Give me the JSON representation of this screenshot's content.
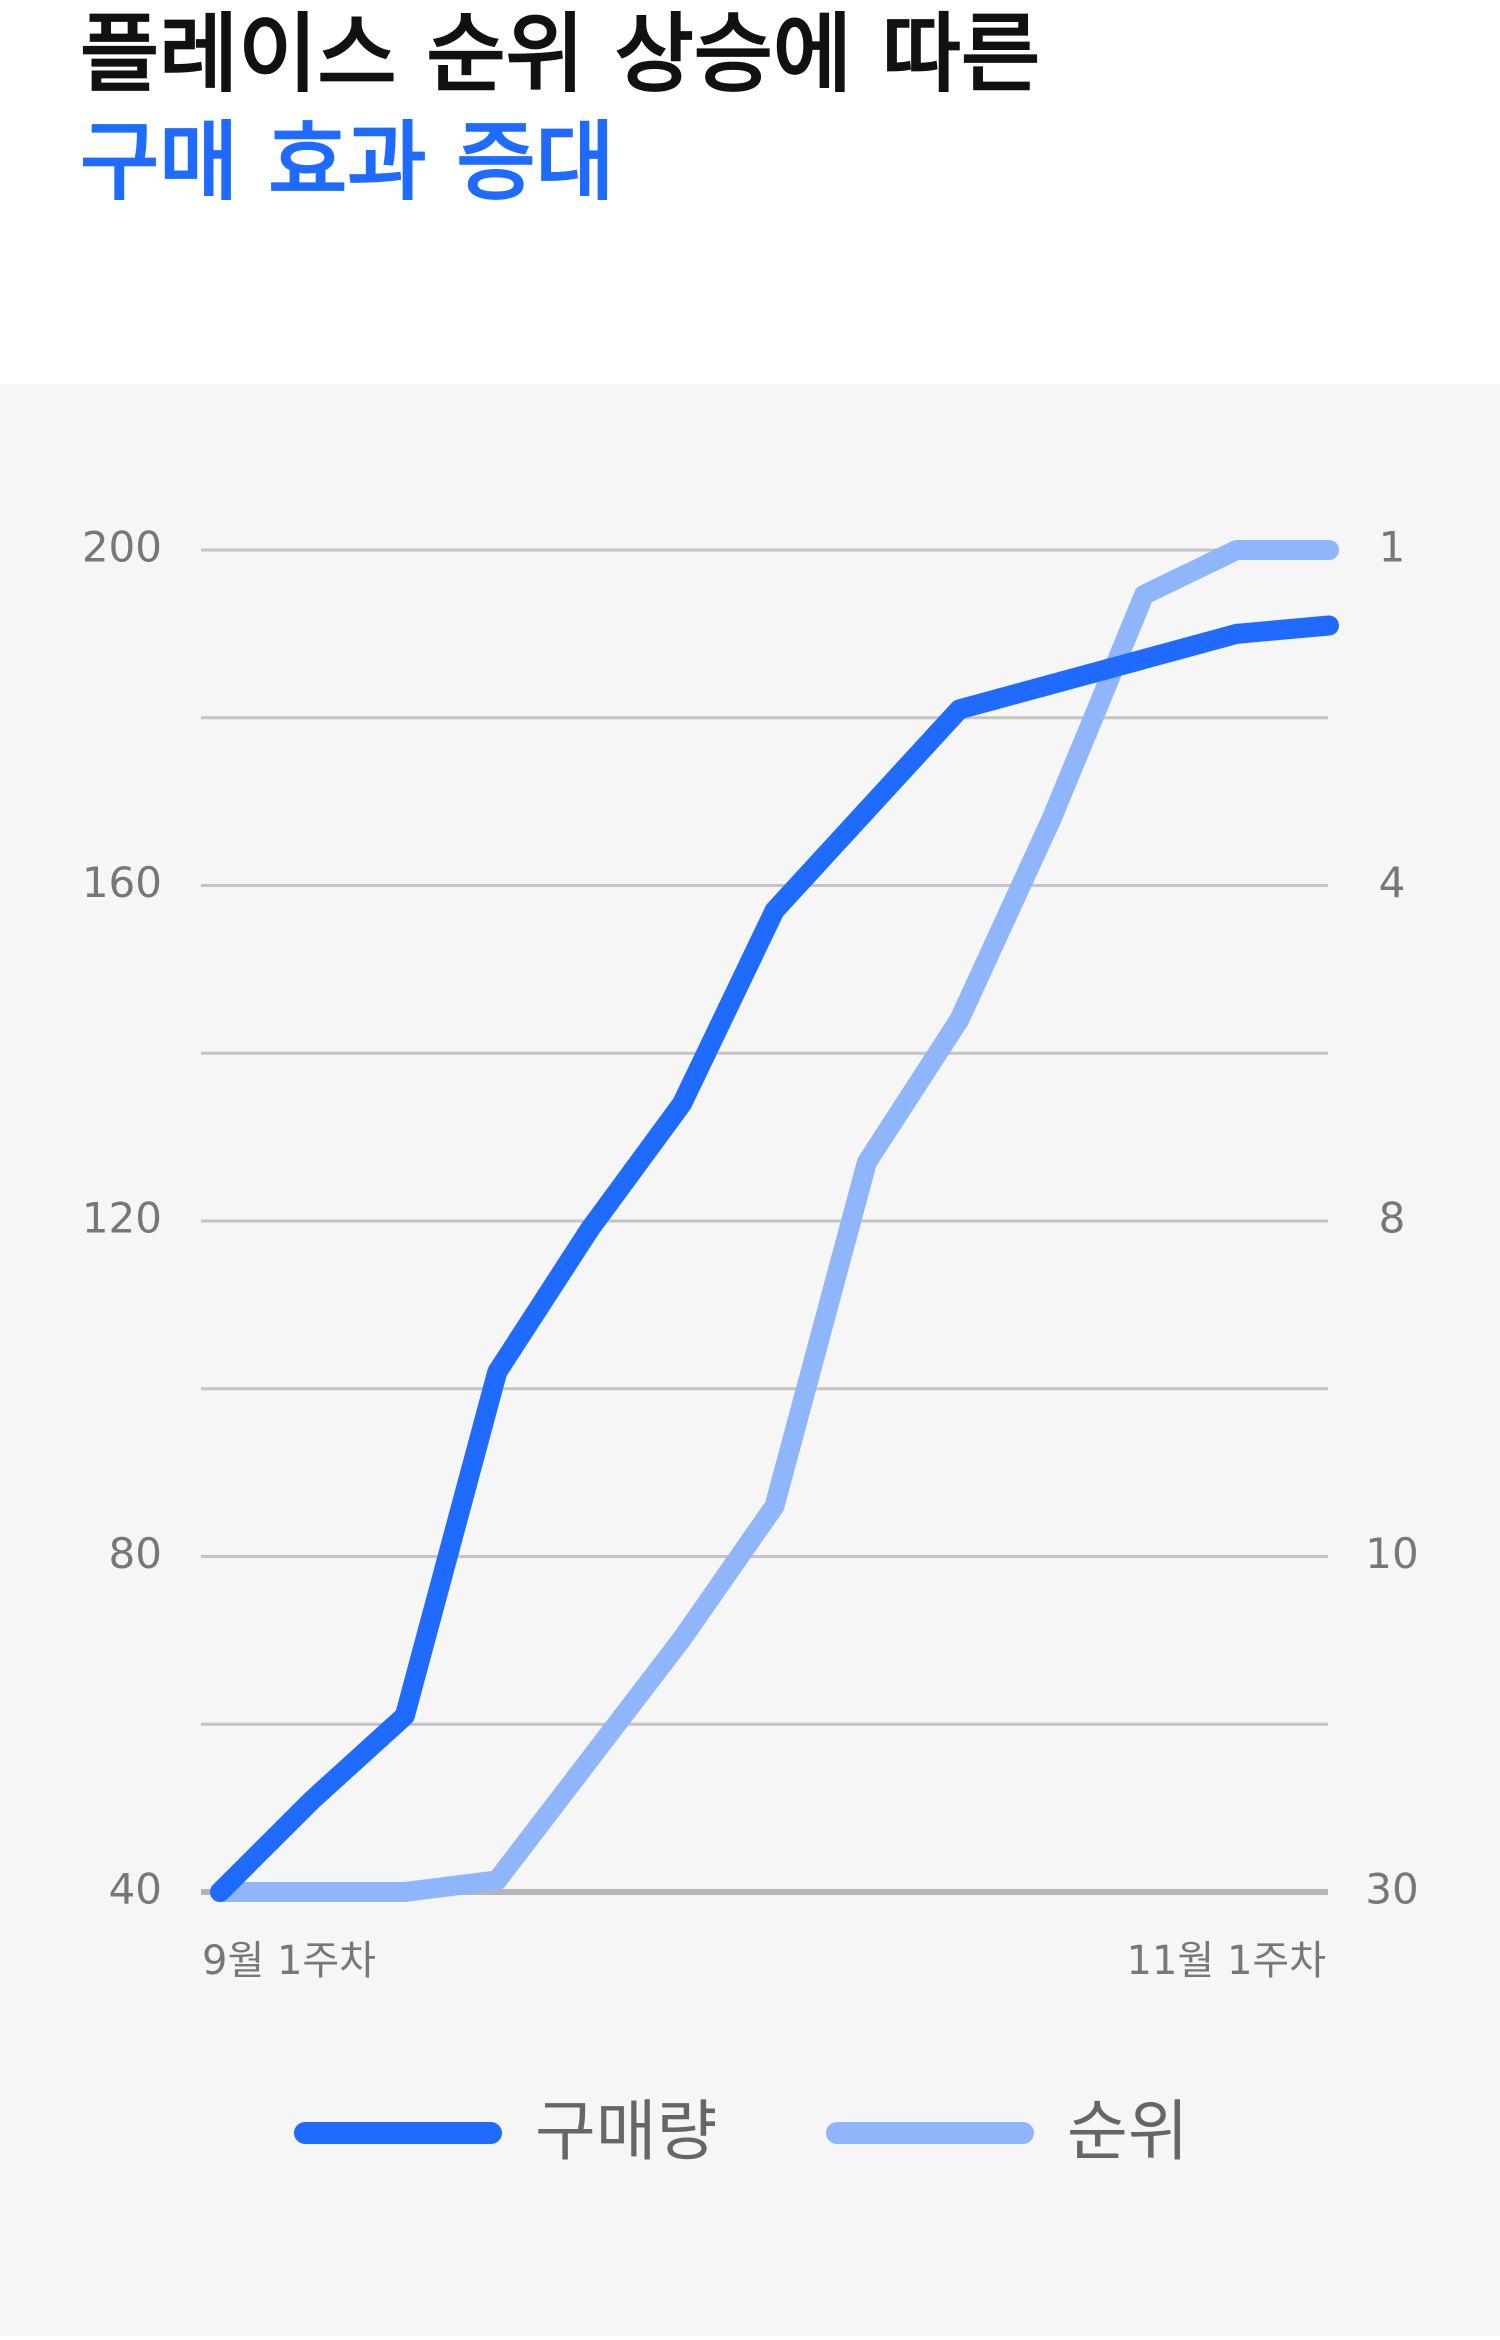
{
  "chart_data": {
    "type": "line",
    "title": "플레이스 순위 상승에 따른",
    "subtitle": "구매 효과 증대",
    "categories": [
      "9월 1주차",
      null,
      null,
      null,
      null,
      null,
      null,
      null,
      null,
      null,
      null,
      null,
      "11월 1주차"
    ],
    "series": [
      {
        "name": "구매량",
        "color": "#1f6bff",
        "values": [
          40,
          51,
          61,
          102,
          119,
          134,
          157,
          169,
          181,
          184,
          187,
          190,
          191
        ]
      },
      {
        "name": "순위",
        "color": "#8fb5fa",
        "axis": "y2",
        "values": [
          30,
          30,
          30,
          29.3,
          22.1,
          14.9,
          9.7,
          7.3,
          5.6,
          3.4,
          1.4,
          1,
          1
        ]
      }
    ],
    "ylim": [
      40,
      200
    ],
    "yticks": [
      40,
      80,
      120,
      160,
      200
    ],
    "y_minor_ticks": [
      60,
      100,
      140,
      180
    ],
    "y2lim": [
      30,
      1
    ],
    "y2ticks": [
      30,
      10,
      8,
      4,
      1
    ],
    "y2scale": "piecewise",
    "grid": true,
    "legend": "bottom"
  }
}
